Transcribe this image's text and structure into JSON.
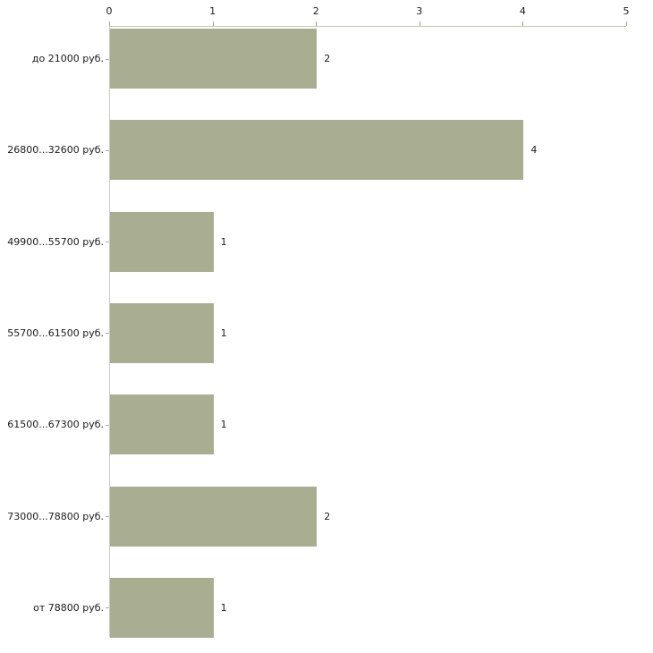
{
  "chart_data": {
    "type": "bar",
    "orientation": "horizontal",
    "title": "",
    "xlabel": "",
    "ylabel": "",
    "categories": [
      "до 21000 руб.",
      "26800...32600 руб.",
      "49900...55700 руб.",
      "55700...61500 руб.",
      "61500...67300 руб.",
      "73000...78800 руб.",
      "от 78800 руб."
    ],
    "values": [
      2,
      4,
      1,
      1,
      1,
      2,
      1
    ],
    "value_labels": [
      "2",
      "4",
      "1",
      "1",
      "1",
      "2",
      "1"
    ],
    "value_axis": {
      "position": "top",
      "range": [
        0,
        5
      ],
      "ticks": [
        "0",
        "1",
        "2",
        "3",
        "4",
        "5"
      ]
    },
    "grid": "off",
    "legend": "none",
    "colors": {
      "bar_fill": "#a9ae93",
      "top_axis_line": "#c5c8b7",
      "left_axis_line": "#cccccc",
      "tick_mark": "#a2a585",
      "text": "#1a1a1a",
      "background": "#ffffff"
    }
  }
}
